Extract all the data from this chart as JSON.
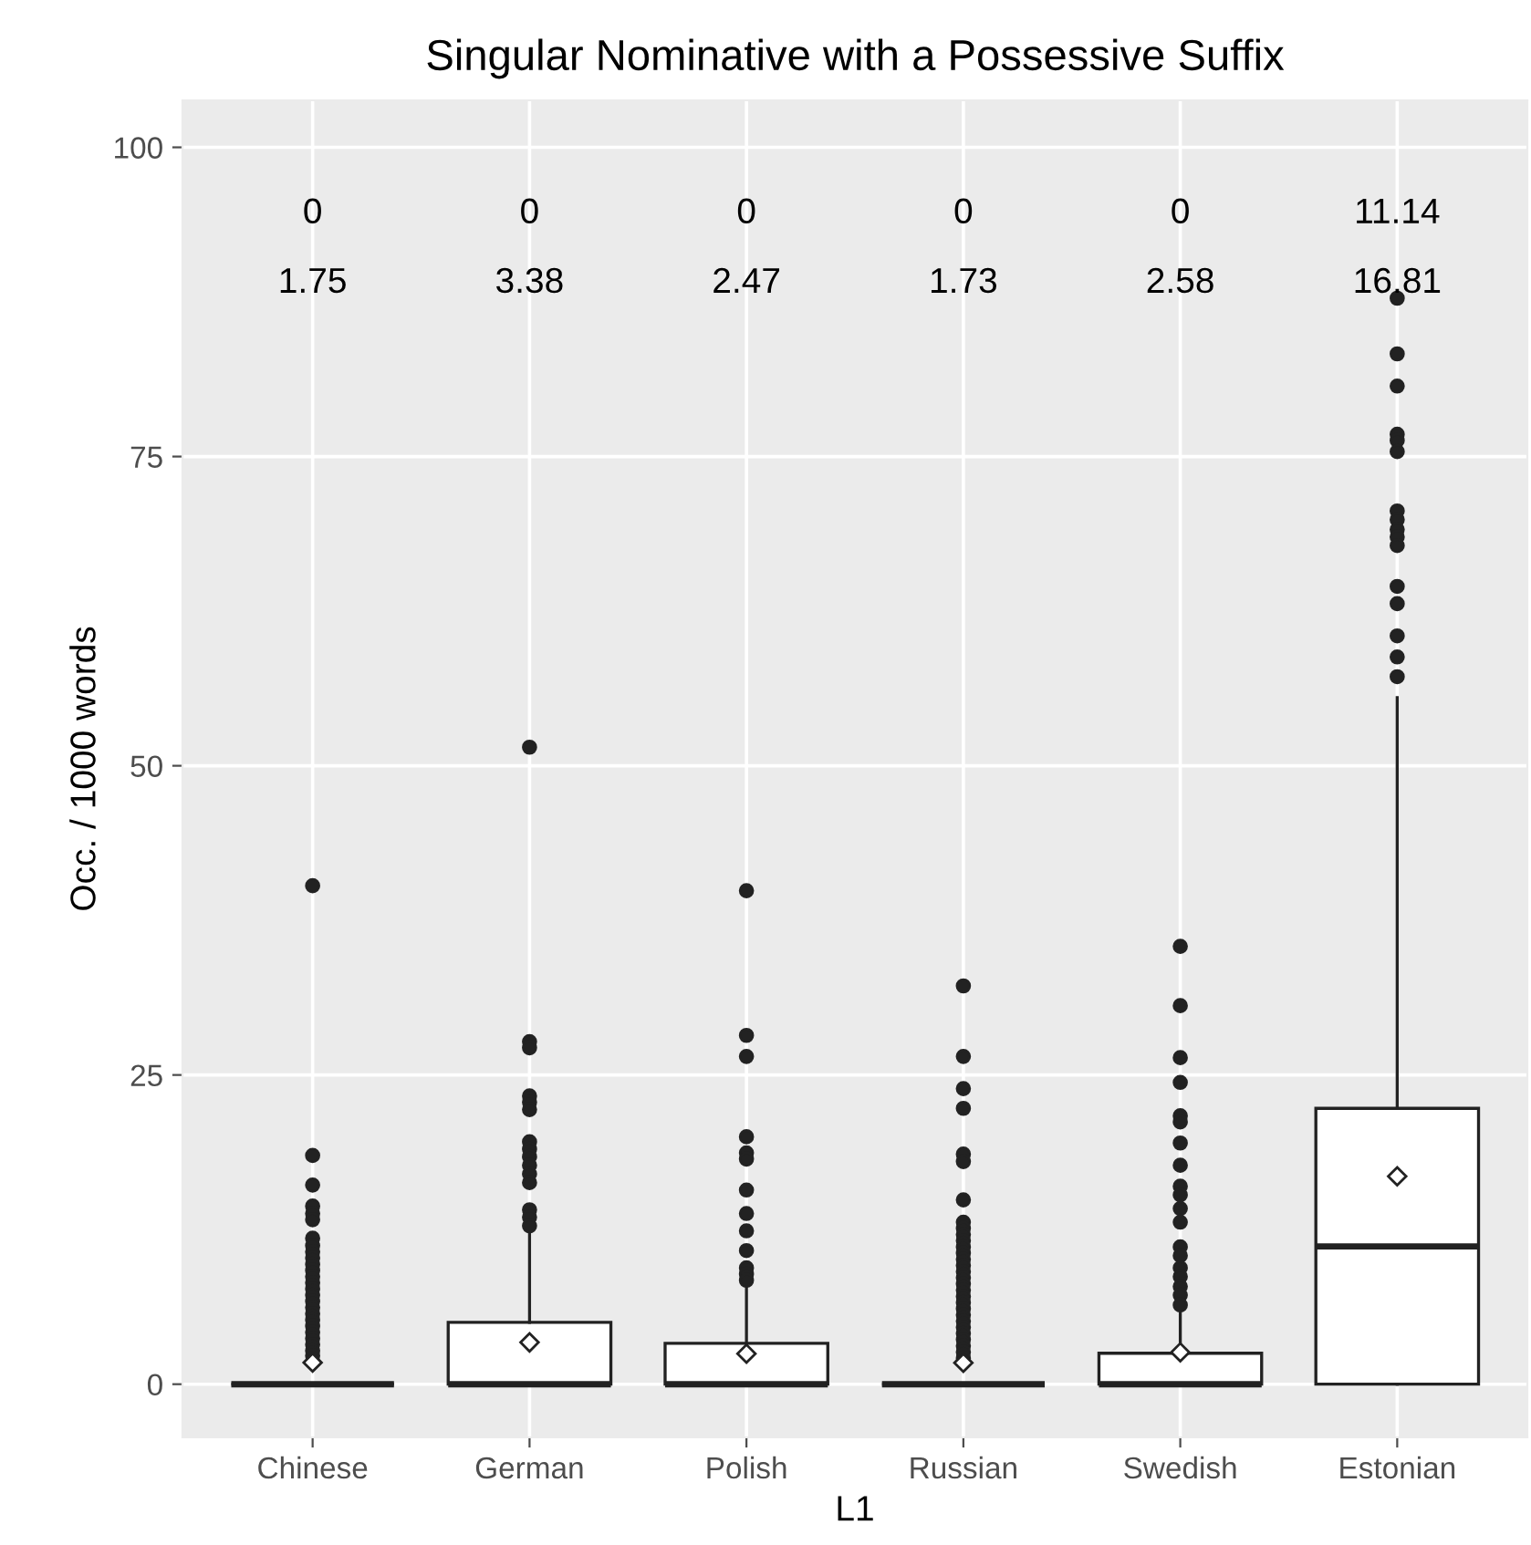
{
  "chart_data": {
    "type": "box",
    "title": "Singular Nominative with a Possessive Suffix",
    "xlabel": "L1",
    "ylabel": "Occ. / 1000 words",
    "categories": [
      "Chinese",
      "German",
      "Polish",
      "Russian",
      "Swedish",
      "Estonian"
    ],
    "boxes": [
      {
        "low": 0,
        "q1": 0,
        "median": 0,
        "q3": 0,
        "high": 0,
        "mean": 1.75,
        "outliers": [
          40.3,
          18.5,
          16.1,
          14.4,
          13.8,
          13.3,
          11.8,
          11.2,
          10.7,
          10.2,
          9.7,
          9.2,
          8.7,
          8.2,
          7.7,
          7.2,
          6.7,
          6.2,
          5.7,
          5.2,
          4.7,
          4.2,
          3.7,
          3.2,
          2.7,
          2.3
        ]
      },
      {
        "low": 0,
        "q1": 0,
        "median": 0,
        "q3": 5.0,
        "high": 12.3,
        "mean": 3.38,
        "outliers": [
          51.5,
          27.7,
          27.2,
          23.3,
          22.8,
          22.2,
          19.6,
          19.0,
          18.4,
          17.7,
          17.0,
          16.3,
          14.1,
          13.5,
          12.8
        ]
      },
      {
        "low": 0,
        "q1": 0,
        "median": 0,
        "q3": 3.3,
        "high": 8.2,
        "mean": 2.47,
        "outliers": [
          39.9,
          28.2,
          26.5,
          20.0,
          18.7,
          18.2,
          15.7,
          13.8,
          12.4,
          10.8,
          9.4,
          8.9,
          8.4
        ]
      },
      {
        "low": 0,
        "q1": 0,
        "median": 0,
        "q3": 0,
        "high": 0,
        "mean": 1.73,
        "outliers": [
          32.2,
          26.5,
          23.9,
          22.3,
          18.6,
          18.0,
          14.9,
          13.1,
          12.6,
          12.1,
          11.6,
          11.1,
          10.6,
          10.1,
          9.6,
          9.1,
          8.6,
          8.1,
          7.6,
          7.1,
          6.6,
          6.1,
          5.6,
          5.1,
          4.6,
          4.1,
          3.6,
          3.1,
          2.6,
          2.1
        ]
      },
      {
        "low": 0,
        "q1": 0,
        "median": 0,
        "q3": 2.5,
        "high": 5.7,
        "mean": 2.58,
        "outliers": [
          35.4,
          30.6,
          26.4,
          24.4,
          21.7,
          21.2,
          19.5,
          17.7,
          16.0,
          15.3,
          14.2,
          13.1,
          11.1,
          10.4,
          9.4,
          8.7,
          7.9,
          7.2,
          6.4
        ]
      },
      {
        "low": 0,
        "q1": 0,
        "median": 11.14,
        "q3": 22.3,
        "high": 55.5,
        "mean": 16.81,
        "outliers": [
          87.8,
          83.3,
          80.7,
          76.8,
          76.3,
          75.4,
          70.6,
          69.9,
          69.1,
          68.5,
          67.8,
          64.5,
          63.1,
          60.5,
          58.8,
          57.2
        ]
      }
    ],
    "annotations": [
      "0",
      "0",
      "0",
      "0",
      "0",
      "11.14",
      "1.75",
      "3.38",
      "2.47",
      "1.73",
      "2.58",
      "16.81"
    ],
    "ylim": [
      -4.3,
      103.8
    ],
    "yticks": [
      0,
      25,
      50,
      75,
      100
    ],
    "grid": true
  }
}
